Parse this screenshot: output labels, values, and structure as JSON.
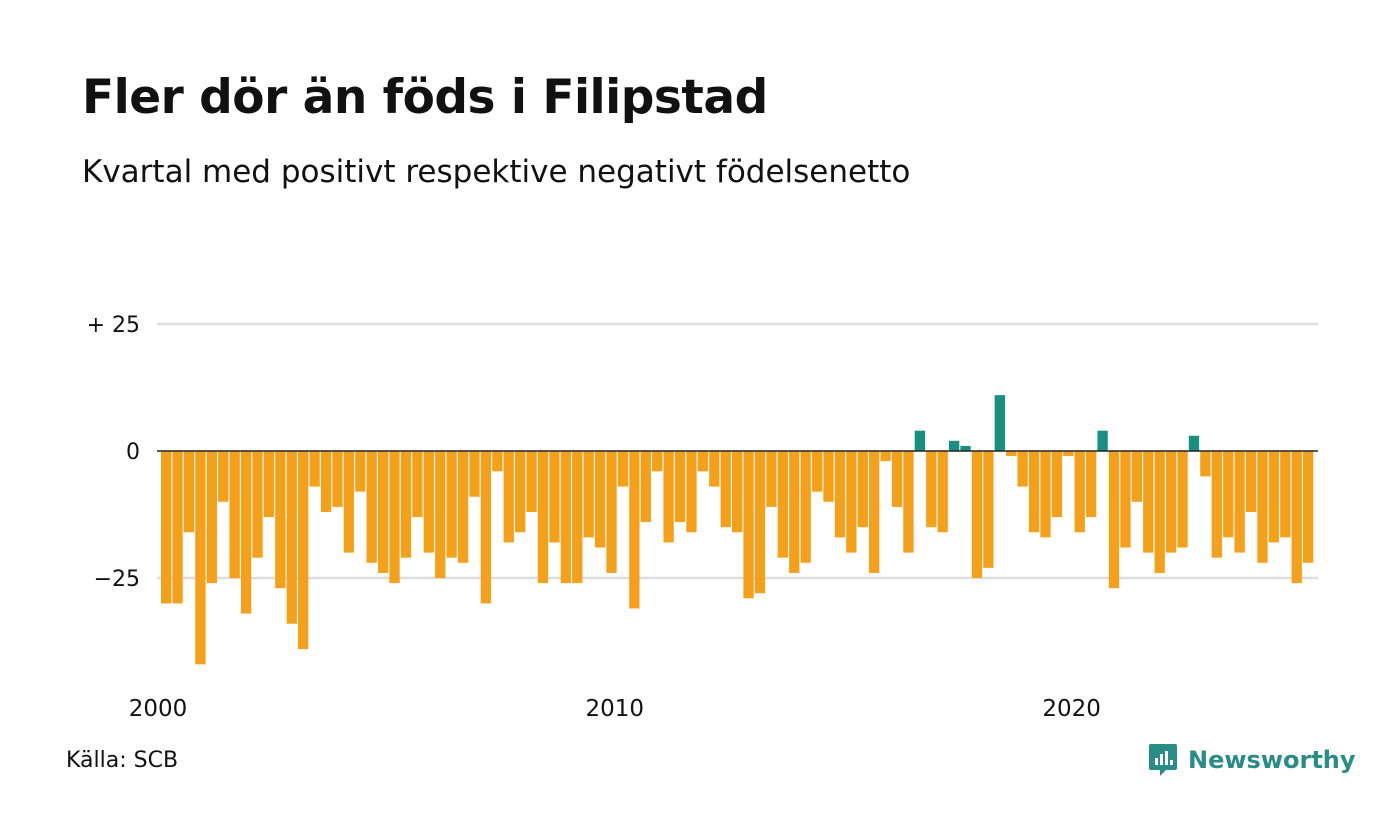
{
  "header": {
    "title": "Fler dör än föds i Filipstad",
    "subtitle": "Kvartal med positivt respektive negativt födelsenetto"
  },
  "footer": {
    "source": "Källa: SCB",
    "brand": "Newsworthy"
  },
  "colors": {
    "negative": "#f5a01a",
    "positive": "#18907f",
    "grid": "#dddddd",
    "baseline": "#222222",
    "brand": "#2a8c86"
  },
  "chart_data": {
    "type": "bar",
    "x_start_year": 2000,
    "x_step": "quarter",
    "ylim": [
      -45,
      28
    ],
    "yticks": [
      {
        "value": 25,
        "label": "+ 25"
      },
      {
        "value": 0,
        "label": "0"
      },
      {
        "value": -25,
        "label": "−25"
      }
    ],
    "xticks": [
      {
        "year": 2000,
        "label": "2000"
      },
      {
        "year": 2010,
        "label": "2010"
      },
      {
        "year": 2020,
        "label": "2020"
      }
    ],
    "values": [
      -30,
      -30,
      -16,
      -42,
      -26,
      -10,
      -25,
      -32,
      -21,
      -13,
      -27,
      -34,
      -39,
      -7,
      -12,
      -11,
      -20,
      -8,
      -22,
      -24,
      -26,
      -21,
      -13,
      -20,
      -25,
      -21,
      -22,
      -9,
      -30,
      -4,
      -18,
      -16,
      -12,
      -26,
      -18,
      -26,
      -26,
      -17,
      -19,
      -24,
      -7,
      -31,
      -14,
      -4,
      -18,
      -14,
      -16,
      -4,
      -7,
      -15,
      -16,
      -29,
      -28,
      -11,
      -21,
      -24,
      -22,
      -8,
      -10,
      -17,
      -20,
      -15,
      -24,
      -2,
      -11,
      -20,
      4,
      -15,
      -16,
      2,
      1,
      -25,
      -23,
      11,
      -1,
      -7,
      -16,
      -17,
      -13,
      -1,
      -16,
      -13,
      4,
      -27,
      -19,
      -10,
      -20,
      -24,
      -20,
      -19,
      3,
      -5,
      -21,
      -17,
      -20,
      -12,
      -22,
      -18,
      -17,
      -26,
      -22
    ]
  }
}
